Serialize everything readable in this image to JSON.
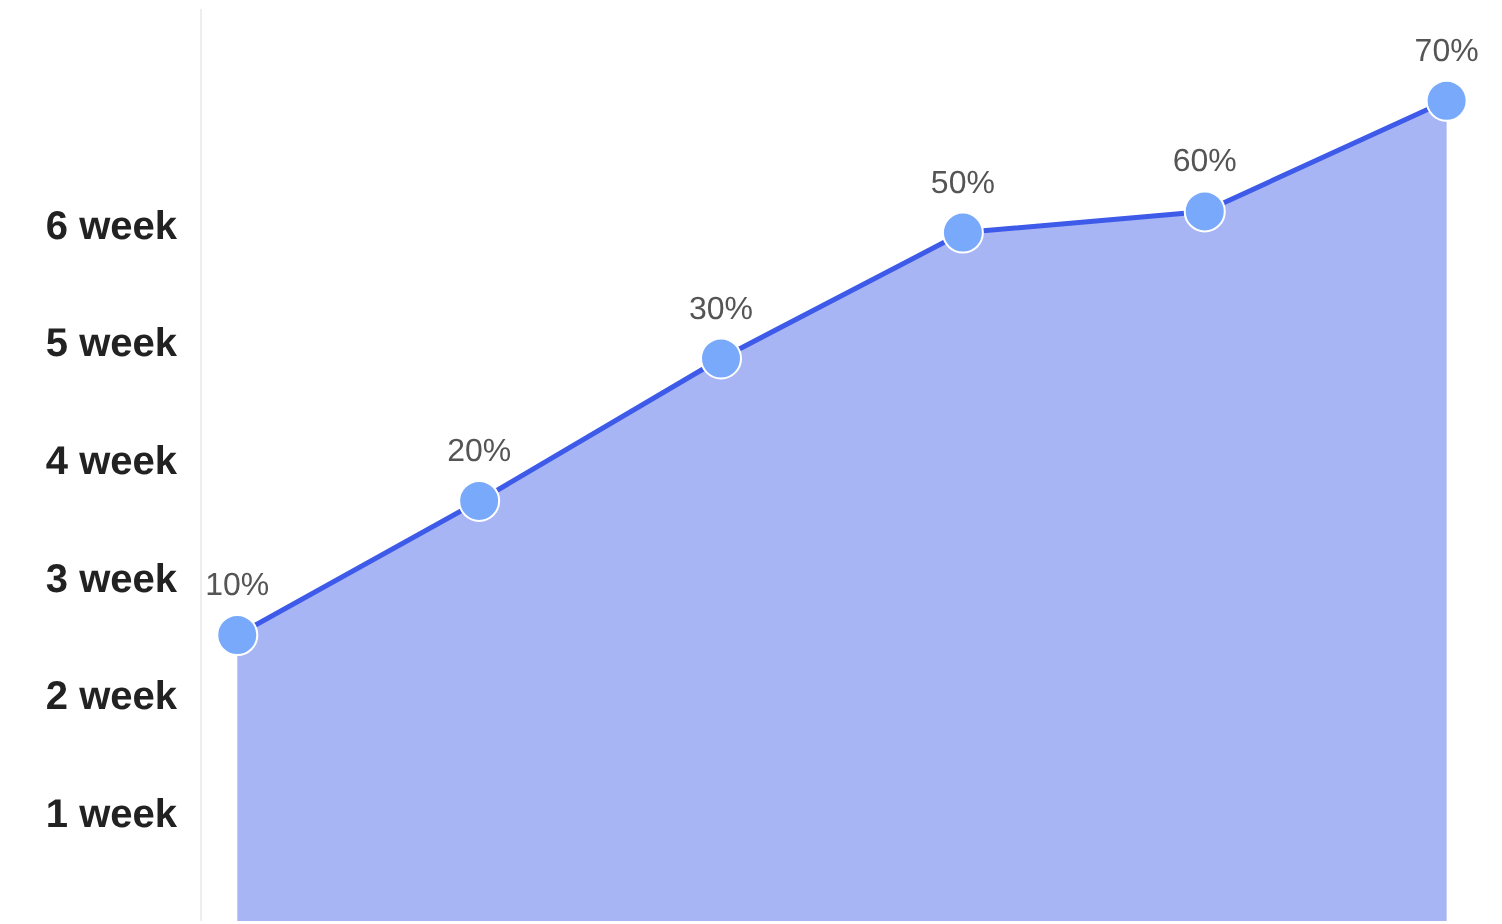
{
  "chart_data": {
    "type": "area",
    "categories": [
      null,
      null,
      null,
      null,
      null,
      null
    ],
    "values": [
      2.53,
      3.67,
      4.88,
      5.95,
      6.13,
      7.07
    ],
    "annotations": [
      {
        "text": "10%",
        "y": 2.53
      },
      {
        "text": "20%",
        "y": 3.67
      },
      {
        "text": "30%",
        "y": 4.88
      },
      {
        "text": "50%",
        "y": 5.95
      },
      {
        "text": "60%",
        "y": 6.13
      },
      {
        "text": "70%",
        "y": 7.07
      }
    ],
    "color": "#3d5ae8",
    "marker": "circle",
    "line_style": "solid",
    "grid": false,
    "tick_labels": "y",
    "ylim": [
      0.1,
      7.85
    ],
    "yticks": [
      {
        "value": 1,
        "label": "1 week"
      },
      {
        "value": 2,
        "label": "2 week"
      },
      {
        "value": 3,
        "label": "3 week"
      },
      {
        "value": 4,
        "label": "4 week"
      },
      {
        "value": 5,
        "label": "5 week"
      },
      {
        "value": 6,
        "label": "6 week"
      }
    ]
  }
}
